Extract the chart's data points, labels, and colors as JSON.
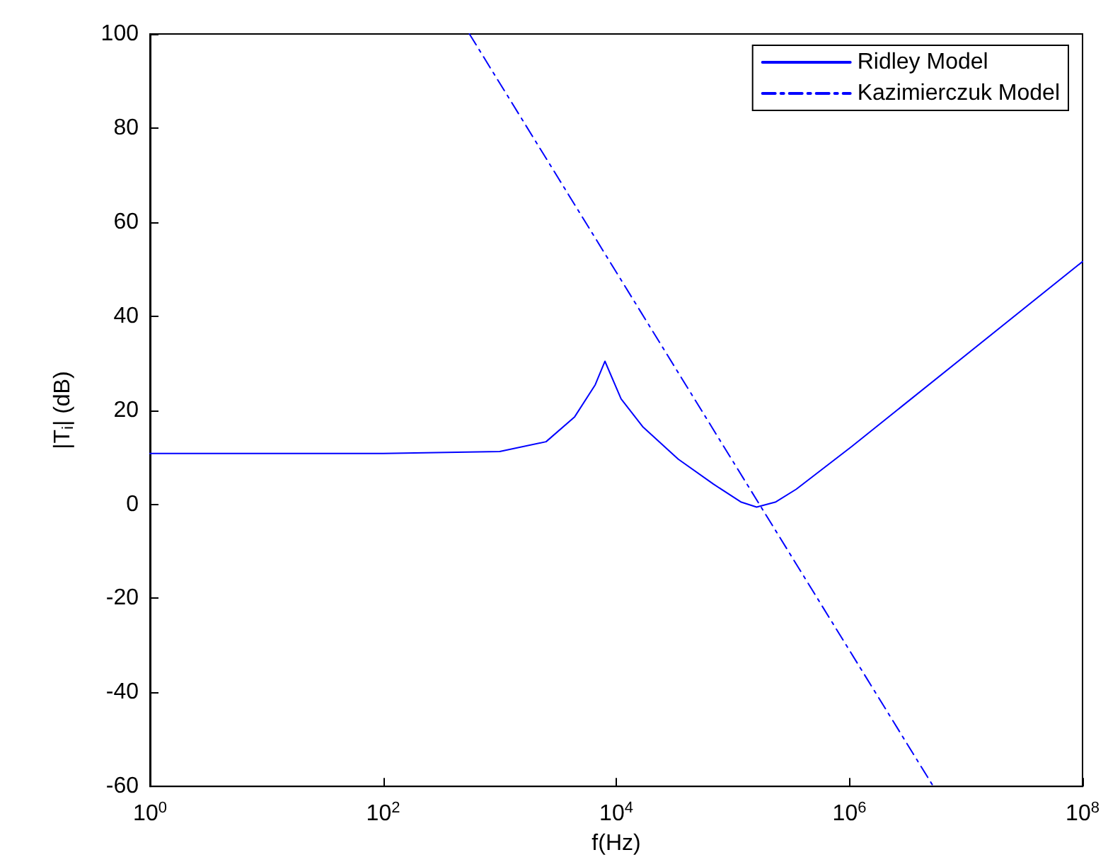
{
  "chart_data": {
    "type": "line",
    "xlabel": "f(Hz)",
    "ylabel": "|T$_{i}$| (dB)",
    "log": "x",
    "xlim": [
      1,
      100000000
    ],
    "xticks": [
      {
        "value": 1,
        "label": "10$^{0}$"
      },
      {
        "value": 100,
        "label": "10$^{2}$"
      },
      {
        "value": 10000,
        "label": "10$^{4}$"
      },
      {
        "value": 1000000,
        "label": "10$^{6}$"
      },
      {
        "value": 100000000,
        "label": "10$^{8}$"
      }
    ],
    "ylim": [
      -60,
      100
    ],
    "yticks": [
      -60,
      -40,
      -20,
      0,
      20,
      40,
      60,
      80,
      100
    ],
    "grid": false,
    "legend": "top right",
    "marker": "none",
    "series": [
      {
        "name": "Ridley Model",
        "color": "#0000ff",
        "line_style": "solid",
        "x": [
          1,
          100,
          1000,
          2500,
          4400,
          6600,
          8000,
          11000,
          17000,
          34000,
          68000,
          117000,
          160000,
          234000,
          350000,
          1050000,
          100000000
        ],
        "values": [
          10.8,
          10.8,
          11.2,
          13.3,
          18.6,
          25.4,
          30.4,
          22.4,
          16.4,
          9.6,
          4.3,
          0.5,
          -0.6,
          0.5,
          3.2,
          12.3,
          51.6
        ]
      },
      {
        "name": "Kazimierczuk Model",
        "color": "#0000ff",
        "line_style": "dashdot",
        "x": [
          550,
          5250000
        ],
        "values": [
          100,
          -60
        ]
      }
    ]
  }
}
